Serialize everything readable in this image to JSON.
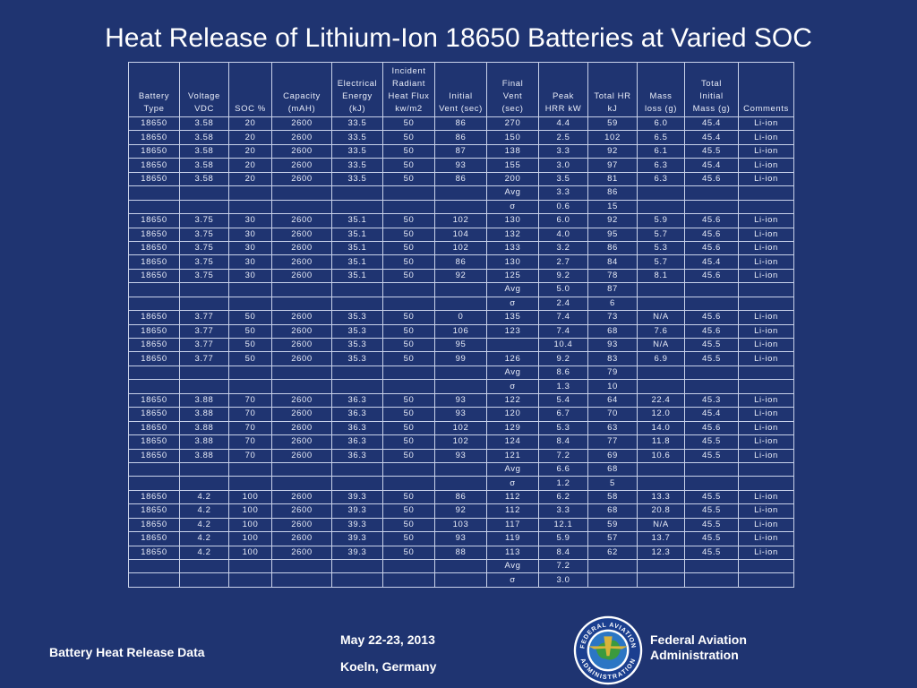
{
  "slide": {
    "title": "Heat Release of Lithium-Ion 18650 Batteries at Varied SOC"
  },
  "table": {
    "headers": [
      [
        "Battery",
        "Type"
      ],
      [
        "Voltage",
        "VDC"
      ],
      [
        "SOC %"
      ],
      [
        "Capacity",
        "(mAH)"
      ],
      [
        "Electrical",
        "Energy",
        "(kJ)"
      ],
      [
        "Incident",
        "Radiant",
        "Heat Flux",
        "kw/m2"
      ],
      [
        "Initial",
        "Vent (sec)"
      ],
      [
        "Final",
        "Vent",
        "(sec)"
      ],
      [
        "Peak",
        "HRR kW"
      ],
      [
        "Total HR",
        "kJ"
      ],
      [
        "Mass",
        "loss (g)"
      ],
      [
        "Total",
        "Initial",
        "Mass (g)"
      ],
      [
        "Comments"
      ]
    ],
    "rows": [
      [
        "18650",
        "3.58",
        "20",
        "2600",
        "33.5",
        "50",
        "86",
        "270",
        "4.4",
        "59",
        "6.0",
        "45.4",
        "Li-ion"
      ],
      [
        "18650",
        "3.58",
        "20",
        "2600",
        "33.5",
        "50",
        "86",
        "150",
        "2.5",
        "102",
        "6.5",
        "45.4",
        "Li-ion"
      ],
      [
        "18650",
        "3.58",
        "20",
        "2600",
        "33.5",
        "50",
        "87",
        "138",
        "3.3",
        "92",
        "6.1",
        "45.5",
        "Li-ion"
      ],
      [
        "18650",
        "3.58",
        "20",
        "2600",
        "33.5",
        "50",
        "93",
        "155",
        "3.0",
        "97",
        "6.3",
        "45.4",
        "Li-ion"
      ],
      [
        "18650",
        "3.58",
        "20",
        "2600",
        "33.5",
        "50",
        "86",
        "200",
        "3.5",
        "81",
        "6.3",
        "45.6",
        "Li-ion"
      ],
      [
        "",
        "",
        "",
        "",
        "",
        "",
        "",
        "Avg",
        "3.3",
        "86",
        "",
        "",
        ""
      ],
      [
        "",
        "",
        "",
        "",
        "",
        "",
        "",
        "σ",
        "0.6",
        "15",
        "",
        "",
        ""
      ],
      [
        "18650",
        "3.75",
        "30",
        "2600",
        "35.1",
        "50",
        "102",
        "130",
        "6.0",
        "92",
        "5.9",
        "45.6",
        "Li-ion"
      ],
      [
        "18650",
        "3.75",
        "30",
        "2600",
        "35.1",
        "50",
        "104",
        "132",
        "4.0",
        "95",
        "5.7",
        "45.6",
        "Li-ion"
      ],
      [
        "18650",
        "3.75",
        "30",
        "2600",
        "35.1",
        "50",
        "102",
        "133",
        "3.2",
        "86",
        "5.3",
        "45.6",
        "Li-ion"
      ],
      [
        "18650",
        "3.75",
        "30",
        "2600",
        "35.1",
        "50",
        "86",
        "130",
        "2.7",
        "84",
        "5.7",
        "45.4",
        "Li-ion"
      ],
      [
        "18650",
        "3.75",
        "30",
        "2600",
        "35.1",
        "50",
        "92",
        "125",
        "9.2",
        "78",
        "8.1",
        "45.6",
        "Li-ion"
      ],
      [
        "",
        "",
        "",
        "",
        "",
        "",
        "",
        "Avg",
        "5.0",
        "87",
        "",
        "",
        ""
      ],
      [
        "",
        "",
        "",
        "",
        "",
        "",
        "",
        "σ",
        "2.4",
        "6",
        "",
        "",
        ""
      ],
      [
        "18650",
        "3.77",
        "50",
        "2600",
        "35.3",
        "50",
        "0",
        "135",
        "7.4",
        "73",
        "N/A",
        "45.6",
        "Li-ion"
      ],
      [
        "18650",
        "3.77",
        "50",
        "2600",
        "35.3",
        "50",
        "106",
        "123",
        "7.4",
        "68",
        "7.6",
        "45.6",
        "Li-ion"
      ],
      [
        "18650",
        "3.77",
        "50",
        "2600",
        "35.3",
        "50",
        "95",
        "",
        "10.4",
        "93",
        "N/A",
        "45.5",
        "Li-ion"
      ],
      [
        "18650",
        "3.77",
        "50",
        "2600",
        "35.3",
        "50",
        "99",
        "126",
        "9.2",
        "83",
        "6.9",
        "45.5",
        "Li-ion"
      ],
      [
        "",
        "",
        "",
        "",
        "",
        "",
        "",
        "Avg",
        "8.6",
        "79",
        "",
        "",
        ""
      ],
      [
        "",
        "",
        "",
        "",
        "",
        "",
        "",
        "σ",
        "1.3",
        "10",
        "",
        "",
        ""
      ],
      [
        "18650",
        "3.88",
        "70",
        "2600",
        "36.3",
        "50",
        "93",
        "122",
        "5.4",
        "64",
        "22.4",
        "45.3",
        "Li-ion"
      ],
      [
        "18650",
        "3.88",
        "70",
        "2600",
        "36.3",
        "50",
        "93",
        "120",
        "6.7",
        "70",
        "12.0",
        "45.4",
        "Li-ion"
      ],
      [
        "18650",
        "3.88",
        "70",
        "2600",
        "36.3",
        "50",
        "102",
        "129",
        "5.3",
        "63",
        "14.0",
        "45.6",
        "Li-ion"
      ],
      [
        "18650",
        "3.88",
        "70",
        "2600",
        "36.3",
        "50",
        "102",
        "124",
        "8.4",
        "77",
        "11.8",
        "45.5",
        "Li-ion"
      ],
      [
        "18650",
        "3.88",
        "70",
        "2600",
        "36.3",
        "50",
        "93",
        "121",
        "7.2",
        "69",
        "10.6",
        "45.5",
        "Li-ion"
      ],
      [
        "",
        "",
        "",
        "",
        "",
        "",
        "",
        "Avg",
        "6.6",
        "68",
        "",
        "",
        ""
      ],
      [
        "",
        "",
        "",
        "",
        "",
        "",
        "",
        "σ",
        "1.2",
        "5",
        "",
        "",
        ""
      ],
      [
        "18650",
        "4.2",
        "100",
        "2600",
        "39.3",
        "50",
        "86",
        "112",
        "6.2",
        "58",
        "13.3",
        "45.5",
        "Li-ion"
      ],
      [
        "18650",
        "4.2",
        "100",
        "2600",
        "39.3",
        "50",
        "92",
        "112",
        "3.3",
        "68",
        "20.8",
        "45.5",
        "Li-ion"
      ],
      [
        "18650",
        "4.2",
        "100",
        "2600",
        "39.3",
        "50",
        "103",
        "117",
        "12.1",
        "59",
        "N/A",
        "45.5",
        "Li-ion"
      ],
      [
        "18650",
        "4.2",
        "100",
        "2600",
        "39.3",
        "50",
        "93",
        "119",
        "5.9",
        "57",
        "13.7",
        "45.5",
        "Li-ion"
      ],
      [
        "18650",
        "4.2",
        "100",
        "2600",
        "39.3",
        "50",
        "88",
        "113",
        "8.4",
        "62",
        "12.3",
        "45.5",
        "Li-ion"
      ],
      [
        "",
        "",
        "",
        "",
        "",
        "",
        "",
        "Avg",
        "7.2",
        "",
        "",
        "",
        ""
      ],
      [
        "",
        "",
        "",
        "",
        "",
        "",
        "",
        "σ",
        "3.0",
        "",
        "",
        "",
        ""
      ]
    ]
  },
  "footer": {
    "left_label": "Battery Heat Release Data",
    "date": "May 22-23, 2013",
    "location": "Koeln, Germany",
    "org_line1": "Federal Aviation",
    "org_line2": "Administration",
    "logo_text_top": "FEDERAL AVIATION",
    "logo_text_bottom": "ADMINISTRATION"
  },
  "colors": {
    "background": "#1f3471",
    "grid": "#c9d2ea",
    "text": "#ffffff"
  }
}
